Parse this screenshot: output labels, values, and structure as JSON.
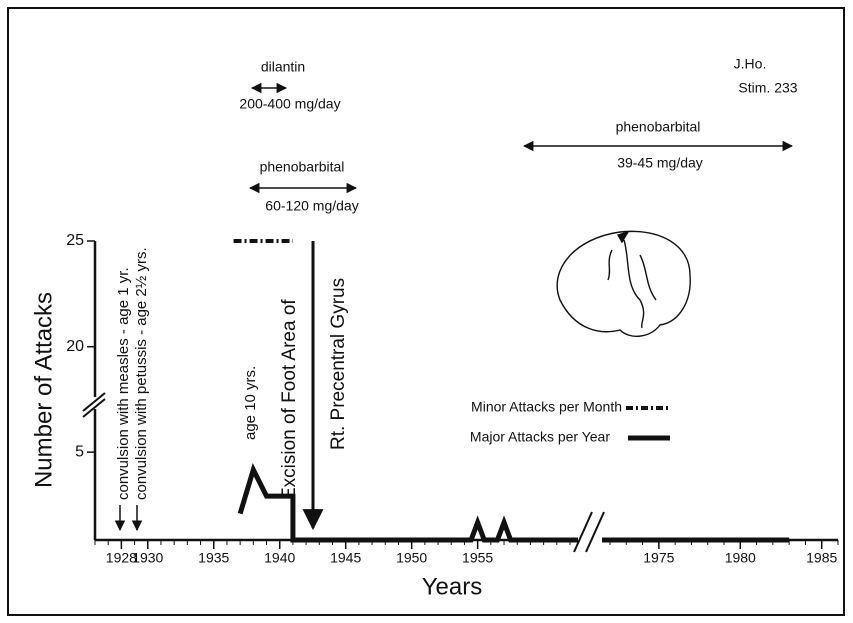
{
  "chart_data": {
    "type": "line",
    "xlabel": "Years",
    "ylabel": "Number of Attacks",
    "xlim": [
      1926,
      1986
    ],
    "x_break": [
      1962,
      1972
    ],
    "xticks": [
      1928,
      1930,
      1935,
      1940,
      1945,
      1950,
      1955,
      1975,
      1980,
      1985
    ],
    "ylim": [
      0,
      25
    ],
    "y_break": [
      7,
      18
    ],
    "yticks": [
      5,
      20,
      25
    ],
    "series": [
      {
        "name": "Minor Attacks per Month",
        "color": "#111111",
        "style": "dashdot",
        "x": [
          1936.5,
          1941
        ],
        "values": [
          25,
          25
        ]
      },
      {
        "name": "Major Attacks per Year",
        "color": "#111111",
        "style": "solid",
        "x": [
          1937,
          1938,
          1939,
          1941,
          1941,
          1954.5,
          1955,
          1955.5,
          1956.5,
          1957,
          1957.5,
          1983
        ],
        "values": [
          1.5,
          4,
          2.5,
          2.5,
          0,
          0,
          1,
          0,
          0,
          1,
          0,
          0
        ]
      }
    ],
    "annotations": {
      "patient": "J.Ho.",
      "stim": "Stim. 233",
      "drug1": "dilantin",
      "dose1": "200-400 mg/day",
      "drug2": "phenobarbital",
      "dose2": "60-120 mg/day",
      "drug3": "phenobarbital",
      "dose3": "39-45 mg/day",
      "event1": "convulsion with measles - age 1 yr.",
      "event2": "convulsion with petussis - age 2½ yrs.",
      "event3": "age 10 yrs.",
      "surgery1": "Excision of Foot Area of",
      "surgery2": "Rt. Precentral Gyrus"
    }
  }
}
